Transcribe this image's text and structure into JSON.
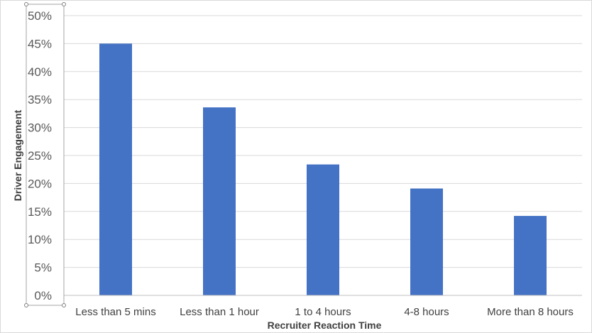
{
  "chart_data": {
    "type": "bar",
    "categories": [
      "Less than 5 mins",
      "Less than 1 hour",
      "1 to 4 hours",
      "4-8 hours",
      "More than 8 hours"
    ],
    "values": [
      45,
      33.6,
      23.4,
      19.1,
      14.2
    ],
    "value_format": "percent",
    "title": "",
    "xlabel": "Recruiter Reaction Time",
    "ylabel": "Driver Engagement",
    "ylim": [
      0,
      50
    ],
    "yticks": [
      "0%",
      "5%",
      "10%",
      "15%",
      "20%",
      "25%",
      "30%",
      "35%",
      "40%",
      "45%",
      "50%"
    ],
    "grid": true,
    "legend": "none",
    "bar_color": "#4472C4"
  }
}
